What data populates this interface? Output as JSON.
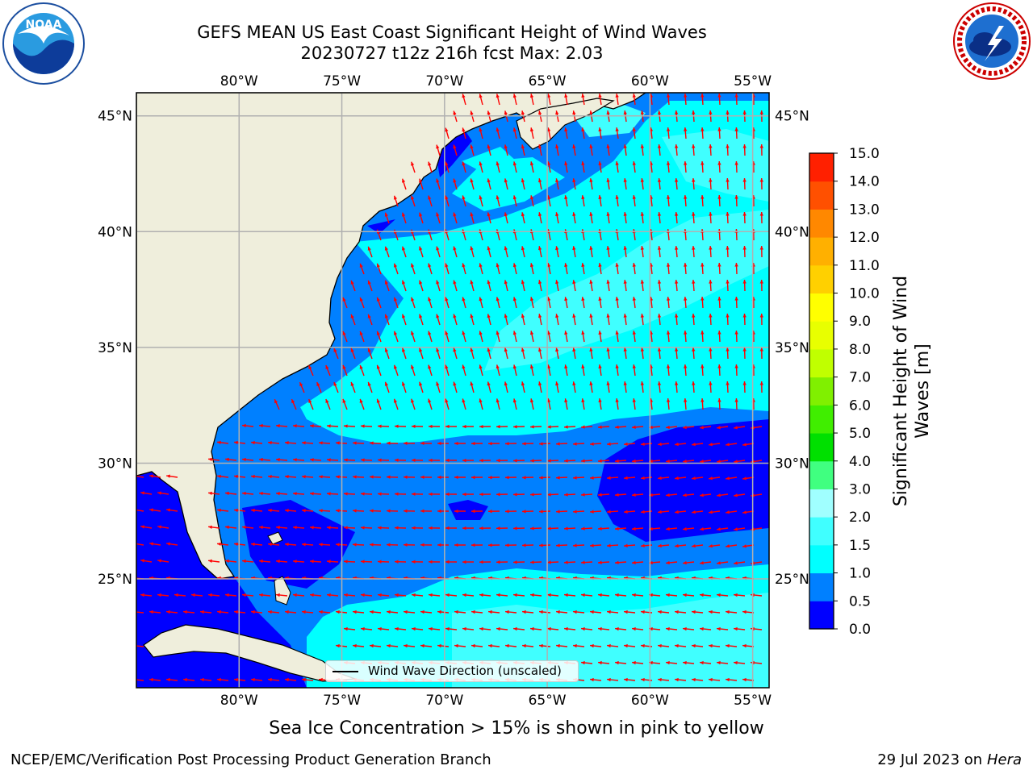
{
  "title": {
    "line1": "GEFS MEAN US East Coast Significant Height of Wind Waves",
    "line2": "20230727 t12z 216h fcst   Max: 2.03"
  },
  "subtitle": "Sea Ice Concentration > 15% is shown in pink to yellow",
  "footer": {
    "left": "NCEP/EMC/Verification Post Processing Product Generation Branch",
    "right_date": "29 Jul 2023 on ",
    "right_host": "Hera"
  },
  "logos": {
    "noaa": {
      "text": "NOAA",
      "ring_text": "NATIONAL OCEANIC AND ATMOSPHERIC ADMINISTRATION · U.S. DEPARTMENT OF COMMERCE"
    },
    "nws": {
      "ring_text": "NATIONAL WEATHER SERVICE"
    }
  },
  "map": {
    "lon_range": [
      -85,
      -54.2
    ],
    "lat_range": [
      20.3,
      46
    ],
    "lon_ticks": [
      -80,
      -75,
      -70,
      -65,
      -60,
      -55
    ],
    "lon_tick_labels": [
      "80°W",
      "75°W",
      "70°W",
      "65°W",
      "60°W",
      "55°W"
    ],
    "lat_ticks": [
      25,
      30,
      35,
      40,
      45
    ],
    "lat_tick_labels": [
      "25°N",
      "30°N",
      "35°N",
      "40°N",
      "45°N"
    ],
    "land_color": "#efeedc",
    "arrow_color": "#ff0000",
    "grid_color": "#b0b0b0",
    "legend_label": "Wind Wave Direction (unscaled)",
    "max_wave_height": 2.03
  },
  "colorbar": {
    "title_line1": "Significant Height of Wind",
    "title_line2": "Waves [m]",
    "ticks": [
      "0.0",
      "0.5",
      "1.0",
      "1.5",
      "2.0",
      "3.0",
      "4.0",
      "5.0",
      "6.0",
      "7.0",
      "8.0",
      "9.0",
      "10.0",
      "11.0",
      "12.0",
      "13.0",
      "14.0",
      "15.0"
    ],
    "colors": [
      "#0000ff",
      "#0080ff",
      "#00ffff",
      "#40ffff",
      "#a0ffff",
      "#40ff80",
      "#00e000",
      "#40ee00",
      "#80f000",
      "#c0ff00",
      "#e8ff00",
      "#ffff00",
      "#ffd000",
      "#ffb000",
      "#ff8800",
      "#ff5000",
      "#ff2000"
    ]
  }
}
